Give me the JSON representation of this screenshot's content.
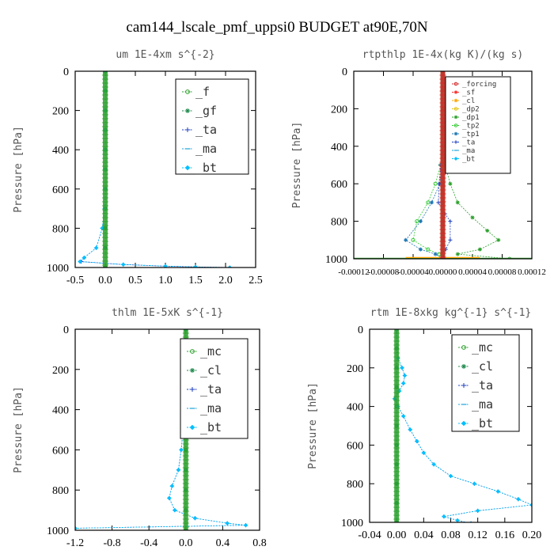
{
  "title": "cam144_lscale_pmf_uppsi0  BUDGET at90E,70N",
  "chart_data": [
    {
      "type": "line",
      "title": "um  1E-4xm s^{-2}",
      "ylabel": "Pressure [hPa]",
      "xlim": [
        -0.5,
        2.5
      ],
      "ylim": [
        1000,
        0
      ],
      "xticks": [
        "-0.5",
        "0.0",
        "0.5",
        "1.0",
        "1.5",
        "2.0",
        "2.5"
      ],
      "xtick_values": [
        -0.5,
        0,
        0.5,
        1.0,
        1.5,
        2.0,
        2.5
      ],
      "yticks": [
        "0",
        "200",
        "400",
        "600",
        "800",
        "1000"
      ],
      "ytick_values": [
        0,
        200,
        400,
        600,
        800,
        1000
      ],
      "legend_style": "big",
      "series": [
        {
          "name": "_f",
          "color": "#2ca02c",
          "marker": "circle",
          "x": [
            0,
            0,
            0,
            0,
            0,
            0,
            0,
            0,
            0,
            0,
            0
          ],
          "y": [
            0,
            100,
            200,
            300,
            400,
            500,
            600,
            700,
            800,
            900,
            1000
          ]
        },
        {
          "name": "_gf",
          "color": "#1f8a4c",
          "marker": "star",
          "x": [
            0,
            0,
            0,
            0,
            0,
            0,
            0,
            0,
            0,
            0,
            0
          ],
          "y": [
            0,
            100,
            200,
            300,
            400,
            500,
            600,
            700,
            800,
            900,
            1000
          ]
        },
        {
          "name": "_ta",
          "color": "#1f3fbf",
          "marker": "plus",
          "x": [
            0,
            0,
            0,
            0,
            0,
            0,
            0,
            -0.01,
            -0.05,
            -0.15,
            -0.35,
            -0.4,
            0.3,
            1.0,
            1.5,
            2.07
          ],
          "y": [
            0,
            100,
            200,
            300,
            400,
            500,
            600,
            700,
            800,
            900,
            950,
            970,
            985,
            993,
            997,
            1000
          ]
        },
        {
          "name": "_ma",
          "color": "#1aa3d9",
          "marker": "dash",
          "x": [
            0,
            0,
            0,
            0,
            0,
            0,
            0,
            0,
            0,
            0,
            0
          ],
          "y": [
            0,
            100,
            200,
            300,
            400,
            500,
            600,
            700,
            800,
            900,
            1000
          ]
        },
        {
          "name": "_bt",
          "color": "#00bfff",
          "marker": "diamond",
          "x": [
            0,
            0,
            0,
            0,
            0,
            0,
            0,
            -0.01,
            -0.05,
            -0.15,
            -0.35,
            -0.42,
            0.3,
            1.0,
            1.5,
            2.07
          ],
          "y": [
            0,
            100,
            200,
            300,
            400,
            500,
            600,
            700,
            800,
            900,
            950,
            970,
            985,
            993,
            997,
            1000
          ]
        }
      ],
      "thick_series": [
        {
          "color": "#2ca02c",
          "x": 0
        }
      ]
    },
    {
      "type": "line",
      "title": "rtpthlp  1E-4x(kg K)/(kg s)",
      "ylabel": "Pressure [hPa]",
      "xlim": [
        -0.00012,
        0.00012
      ],
      "ylim": [
        1000,
        0
      ],
      "xticks": [
        "-0.00012",
        "-0.00008",
        "-0.00004",
        "0.00000",
        "0.00004",
        "0.00008",
        "0.00012"
      ],
      "xtick_values": [
        -0.00012,
        -8e-05,
        -4e-05,
        0,
        4e-05,
        8e-05,
        0.00012
      ],
      "yticks": [
        "0",
        "200",
        "400",
        "600",
        "800",
        "1000"
      ],
      "ytick_values": [
        0,
        200,
        400,
        600,
        800,
        1000
      ],
      "legend_style": "small",
      "series": [
        {
          "name": "_forcing",
          "color": "#d62728",
          "marker": "circle",
          "x": [
            0,
            0,
            0,
            0,
            0,
            0,
            0,
            0,
            0,
            0,
            0
          ],
          "y": [
            0,
            100,
            200,
            300,
            400,
            500,
            600,
            700,
            800,
            900,
            1000
          ]
        },
        {
          "name": "_sf",
          "color": "#ff3030",
          "marker": "star",
          "x": [
            0,
            0,
            0,
            0,
            0,
            0,
            0,
            0,
            0,
            0,
            0
          ],
          "y": [
            0,
            100,
            200,
            300,
            400,
            500,
            600,
            700,
            800,
            900,
            1000
          ]
        },
        {
          "name": "_cl",
          "color": "#ffa500",
          "marker": "star",
          "x": [
            0,
            0,
            0,
            0,
            0,
            0,
            0,
            0,
            0,
            0,
            0
          ],
          "y": [
            0,
            100,
            200,
            300,
            400,
            500,
            600,
            700,
            800,
            900,
            1000
          ]
        },
        {
          "name": "_dp2",
          "color": "#e0c000",
          "marker": "circle",
          "x": [
            0,
            0,
            0,
            0,
            0,
            0,
            0,
            0,
            0,
            0,
            0
          ],
          "y": [
            0,
            100,
            200,
            300,
            400,
            500,
            600,
            700,
            800,
            900,
            1000
          ]
        },
        {
          "name": "_dp1",
          "color": "#2ca02c",
          "marker": "star",
          "x": [
            0,
            0,
            0,
            0,
            3e-06,
            1e-05,
            2e-05,
            4e-05,
            6e-05,
            7.5e-05,
            5e-05,
            2e-05,
            9e-05
          ],
          "y": [
            0,
            200,
            300,
            400,
            500,
            600,
            700,
            780,
            850,
            900,
            950,
            975,
            1000
          ]
        },
        {
          "name": "_tp2",
          "color": "#33cc33",
          "marker": "circle",
          "x": [
            0,
            0,
            0,
            0,
            -3e-06,
            -1e-05,
            -2e-05,
            -3.5e-05,
            -4e-05,
            -2e-05,
            -5e-06,
            0
          ],
          "y": [
            0,
            200,
            300,
            400,
            500,
            600,
            700,
            800,
            900,
            950,
            975,
            1000
          ]
        },
        {
          "name": "_tp1",
          "color": "#1f77b4",
          "marker": "star",
          "x": [
            0,
            0,
            0,
            0,
            -4e-06,
            -1.5e-05,
            -3e-05,
            -5e-05,
            -3e-05,
            -1e-05,
            0
          ],
          "y": [
            0,
            200,
            300,
            400,
            600,
            700,
            800,
            900,
            950,
            975,
            1000
          ]
        },
        {
          "name": "_ta",
          "color": "#1f3fbf",
          "marker": "plus",
          "x": [
            0,
            0,
            0,
            0,
            -3e-06,
            -5e-06,
            -6e-06,
            3e-06,
            1e-05,
            1e-05,
            4e-06,
            0
          ],
          "y": [
            0,
            200,
            300,
            400,
            500,
            600,
            700,
            760,
            800,
            900,
            950,
            1000
          ]
        },
        {
          "name": "_ma",
          "color": "#1aa3d9",
          "marker": "dash",
          "x": [
            0,
            0,
            0,
            0,
            0,
            0,
            0,
            0,
            0,
            0,
            0
          ],
          "y": [
            0,
            100,
            200,
            300,
            400,
            500,
            600,
            700,
            800,
            900,
            1000
          ]
        },
        {
          "name": "_bt",
          "color": "#00bfff",
          "marker": "diamond",
          "x": [
            0,
            0,
            0,
            0,
            0,
            0,
            0,
            0,
            0,
            0,
            0
          ],
          "y": [
            0,
            100,
            200,
            300,
            400,
            500,
            600,
            700,
            800,
            900,
            1000
          ]
        }
      ],
      "thick_series": [
        {
          "color": "#2ca02c",
          "x": 0
        },
        {
          "color": "#d62728",
          "x": 0
        }
      ],
      "extra_lines": [
        {
          "color": "#2ca02c",
          "x": [
            -0.00012,
            0.00012
          ],
          "y": [
            997,
            997
          ]
        },
        {
          "color": "#ffa500",
          "x": [
            -5e-05,
            5e-05
          ],
          "y": [
            993,
            993
          ]
        }
      ]
    },
    {
      "type": "line",
      "title": "thlm  1E-5xK s^{-1}",
      "ylabel": "Pressure [hPa]",
      "xlim": [
        -1.2,
        0.8
      ],
      "ylim": [
        1000,
        0
      ],
      "xticks": [
        "-1.2",
        "-0.8",
        "-0.4",
        "0.0",
        "0.4",
        "0.8"
      ],
      "xtick_values": [
        -1.2,
        -0.8,
        -0.4,
        0,
        0.4,
        0.8
      ],
      "yticks": [
        "0",
        "200",
        "400",
        "600",
        "800",
        "1000"
      ],
      "ytick_values": [
        0,
        200,
        400,
        600,
        800,
        1000
      ],
      "legend_style": "big",
      "series": [
        {
          "name": "_mc",
          "color": "#2ca02c",
          "marker": "circle",
          "x": [
            0,
            0,
            0,
            0,
            0,
            0,
            0,
            0,
            0,
            0,
            0
          ],
          "y": [
            0,
            100,
            200,
            300,
            400,
            500,
            600,
            700,
            800,
            900,
            1000
          ]
        },
        {
          "name": "_cl",
          "color": "#1f8a4c",
          "marker": "star",
          "x": [
            0,
            0,
            0,
            0,
            0,
            0,
            0,
            0,
            0,
            0,
            0
          ],
          "y": [
            0,
            100,
            200,
            300,
            400,
            500,
            600,
            700,
            800,
            900,
            1000
          ]
        },
        {
          "name": "_ta",
          "color": "#1f3fbf",
          "marker": "plus",
          "x": [
            0,
            -0.005,
            -0.01,
            -0.02,
            -0.03,
            -0.05,
            -0.08,
            -0.15,
            -0.18,
            -0.12,
            0.1,
            0.45,
            0.65,
            -1.2
          ],
          "y": [
            0,
            200,
            300,
            400,
            500,
            600,
            700,
            780,
            840,
            900,
            940,
            965,
            975,
            990
          ]
        },
        {
          "name": "_ma",
          "color": "#1aa3d9",
          "marker": "dash",
          "x": [
            0,
            0,
            0,
            0,
            0,
            0,
            0,
            0,
            0,
            0,
            0
          ],
          "y": [
            0,
            100,
            200,
            300,
            400,
            500,
            600,
            700,
            800,
            900,
            1000
          ]
        },
        {
          "name": "_bt",
          "color": "#00bfff",
          "marker": "diamond",
          "x": [
            0,
            -0.005,
            -0.01,
            -0.02,
            -0.03,
            -0.05,
            -0.08,
            -0.15,
            -0.18,
            -0.12,
            0.1,
            0.45,
            0.65,
            -1.2
          ],
          "y": [
            0,
            200,
            300,
            400,
            500,
            600,
            700,
            780,
            840,
            900,
            940,
            965,
            975,
            990
          ]
        }
      ],
      "thick_series": [
        {
          "color": "#2ca02c",
          "x": 0
        }
      ]
    },
    {
      "type": "line",
      "title": "rtm  1E-8xkg kg^{-1} s^{-1}",
      "ylabel": "Pressure [hPa]",
      "xlim": [
        -0.04,
        0.2
      ],
      "ylim": [
        1000,
        0
      ],
      "xticks": [
        "-0.04",
        "0.00",
        "0.04",
        "0.08",
        "0.12",
        "0.16",
        "0.20"
      ],
      "xtick_values": [
        -0.04,
        0,
        0.04,
        0.08,
        0.12,
        0.16,
        0.2
      ],
      "yticks": [
        "0",
        "200",
        "400",
        "600",
        "800",
        "1000"
      ],
      "ytick_values": [
        0,
        200,
        400,
        600,
        800,
        1000
      ],
      "legend_style": "big",
      "series": [
        {
          "name": "_mc",
          "color": "#2ca02c",
          "marker": "circle",
          "x": [
            0,
            0,
            0,
            0,
            0,
            0,
            0,
            0,
            0,
            0,
            0
          ],
          "y": [
            0,
            100,
            200,
            300,
            400,
            500,
            600,
            700,
            800,
            900,
            1000
          ]
        },
        {
          "name": "_cl",
          "color": "#1f8a4c",
          "marker": "star",
          "x": [
            0,
            0,
            0,
            0,
            0,
            0,
            0,
            0,
            0,
            0,
            0
          ],
          "y": [
            0,
            100,
            200,
            300,
            400,
            500,
            600,
            700,
            800,
            900,
            1000
          ]
        },
        {
          "name": "_ta",
          "color": "#1f3fbf",
          "marker": "plus",
          "x": [
            0,
            0.002,
            0.008,
            0.012,
            0.01,
            0.004,
            -0.003,
            0.002,
            0.01,
            0.02,
            0.03,
            0.04,
            0.055,
            0.08,
            0.115,
            0.15,
            0.18,
            0.2,
            0.12,
            0.07,
            0.09,
            0.11
          ],
          "y": [
            0,
            150,
            200,
            240,
            280,
            320,
            360,
            400,
            450,
            520,
            580,
            640,
            700,
            760,
            800,
            840,
            880,
            910,
            940,
            970,
            990,
            1005
          ]
        },
        {
          "name": "_ma",
          "color": "#1aa3d9",
          "marker": "dash",
          "x": [
            0,
            0,
            0,
            0,
            0,
            0,
            0,
            0,
            0,
            0,
            0
          ],
          "y": [
            0,
            100,
            200,
            300,
            400,
            500,
            600,
            700,
            800,
            900,
            1000
          ]
        },
        {
          "name": "_bt",
          "color": "#00bfff",
          "marker": "diamond",
          "x": [
            0,
            0.002,
            0.008,
            0.012,
            0.01,
            0.004,
            -0.003,
            0.002,
            0.01,
            0.02,
            0.03,
            0.04,
            0.055,
            0.08,
            0.115,
            0.15,
            0.18,
            0.2,
            0.12,
            0.07,
            0.09,
            0.11
          ],
          "y": [
            0,
            150,
            200,
            240,
            280,
            320,
            360,
            400,
            450,
            520,
            580,
            640,
            700,
            760,
            800,
            840,
            880,
            910,
            940,
            970,
            990,
            1005
          ]
        }
      ],
      "thick_series": [
        {
          "color": "#2ca02c",
          "x": 0
        }
      ]
    }
  ]
}
